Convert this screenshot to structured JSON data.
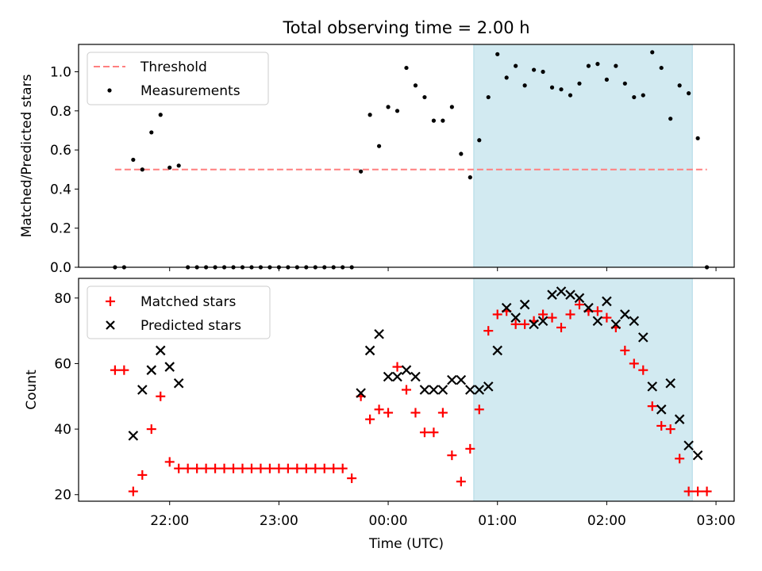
{
  "figure": {
    "title": "Total observing time = 2.00 h"
  },
  "colors": {
    "threshold": "#ff7f7f",
    "span": "#add8e6",
    "measurement": "#000000",
    "matched": "#ff0000",
    "predicted": "#000000"
  },
  "chart_data": [
    {
      "type": "scatter",
      "ylabel": "Matched/Predicted stars",
      "ylim": [
        0,
        1.14
      ],
      "yticks": [
        "0.0",
        "0.2",
        "0.4",
        "0.6",
        "0.8",
        "1.0"
      ],
      "xlim": [
        "21:10",
        "03:10"
      ],
      "legend": {
        "placement": "top-left",
        "entries": [
          "Threshold",
          "Measurements"
        ]
      },
      "highlight_span": [
        "00:47",
        "02:47"
      ],
      "threshold": {
        "name": "Threshold",
        "value": 0.5,
        "x": [
          "21:30",
          "02:55"
        ],
        "style": "dashed"
      },
      "series": [
        {
          "name": "Measurements",
          "x": [
            "21:30",
            "21:35",
            "21:40",
            "21:45",
            "21:50",
            "21:55",
            "22:00",
            "22:05",
            "22:10",
            "22:15",
            "22:20",
            "22:25",
            "22:30",
            "22:35",
            "22:40",
            "22:45",
            "22:50",
            "22:55",
            "23:00",
            "23:05",
            "23:10",
            "23:15",
            "23:20",
            "23:25",
            "23:30",
            "23:35",
            "23:40",
            "23:45",
            "23:50",
            "23:55",
            "00:00",
            "00:05",
            "00:10",
            "00:15",
            "00:20",
            "00:25",
            "00:30",
            "00:35",
            "00:40",
            "00:45",
            "00:50",
            "00:55",
            "01:00",
            "01:05",
            "01:10",
            "01:15",
            "01:20",
            "01:25",
            "01:30",
            "01:35",
            "01:40",
            "01:45",
            "01:50",
            "01:55",
            "02:00",
            "02:05",
            "02:10",
            "02:15",
            "02:20",
            "02:25",
            "02:30",
            "02:35",
            "02:40",
            "02:45",
            "02:50"
          ],
          "y": [
            0,
            0,
            0.55,
            0.5,
            0.69,
            0.78,
            0.51,
            0.52,
            0,
            0,
            0,
            0,
            0,
            0,
            0,
            0,
            0,
            0,
            0,
            0,
            0,
            0,
            0,
            0,
            0,
            0,
            0,
            0.49,
            0.78,
            0.62,
            0.82,
            0.8,
            1.02,
            0.93,
            0.87,
            0.75,
            0.75,
            0.82,
            0.58,
            0.46,
            0.65,
            0.87,
            1.09,
            0.97,
            1.03,
            0.93,
            1.01,
            1.0,
            0.92,
            0.91,
            0.88,
            0.94,
            1.03,
            1.04,
            0.96,
            1.03,
            0.94,
            0.87,
            0.88,
            1.1,
            1.02,
            0.76,
            0.93,
            0.89,
            0.66
          ]
        }
      ],
      "extra_points": {
        "x": [
          "02:55"
        ],
        "y": [
          0
        ]
      }
    },
    {
      "type": "scatter",
      "xlabel": "Time (UTC)",
      "ylabel": "Count",
      "ylim": [
        18,
        86
      ],
      "yticks": [
        "20",
        "40",
        "60",
        "80"
      ],
      "xticks": [
        "22:00",
        "23:00",
        "00:00",
        "01:00",
        "02:00",
        "03:00"
      ],
      "xlim": [
        "21:10",
        "03:10"
      ],
      "legend": {
        "placement": "top-left",
        "entries": [
          "Matched stars",
          "Predicted stars"
        ]
      },
      "highlight_span": [
        "00:47",
        "02:47"
      ],
      "series": [
        {
          "name": "Matched stars",
          "x": [
            "21:30",
            "21:35",
            "21:40",
            "21:45",
            "21:50",
            "21:55",
            "22:00",
            "22:05",
            "22:10",
            "22:15",
            "22:20",
            "22:25",
            "22:30",
            "22:35",
            "22:40",
            "22:45",
            "22:50",
            "22:55",
            "23:00",
            "23:05",
            "23:10",
            "23:15",
            "23:20",
            "23:25",
            "23:30",
            "23:35",
            "23:40",
            "23:45",
            "23:50",
            "23:55",
            "00:00",
            "00:05",
            "00:10",
            "00:15",
            "00:20",
            "00:25",
            "00:30",
            "00:35",
            "00:40",
            "00:45",
            "00:50",
            "00:55",
            "01:00",
            "01:05",
            "01:10",
            "01:15",
            "01:20",
            "01:25",
            "01:30",
            "01:35",
            "01:40",
            "01:45",
            "01:50",
            "01:55",
            "02:00",
            "02:05",
            "02:10",
            "02:15",
            "02:20",
            "02:25",
            "02:30",
            "02:35",
            "02:40",
            "02:45",
            "02:50",
            "02:55"
          ],
          "y": [
            58,
            58,
            21,
            26,
            40,
            50,
            30,
            28,
            28,
            28,
            28,
            28,
            28,
            28,
            28,
            28,
            28,
            28,
            28,
            28,
            28,
            28,
            28,
            28,
            28,
            28,
            25,
            50,
            43,
            46,
            45,
            59,
            52,
            45,
            39,
            39,
            45,
            32,
            24,
            34,
            46,
            70,
            75,
            76,
            72,
            72,
            73,
            75,
            74,
            71,
            75,
            78,
            76,
            76,
            74,
            71,
            64,
            60,
            58,
            47,
            41,
            40,
            31,
            21,
            21,
            21
          ]
        },
        {
          "name": "Predicted stars",
          "x": [
            "21:40",
            "21:45",
            "21:50",
            "21:55",
            "22:00",
            "22:05",
            "23:45",
            "23:50",
            "23:55",
            "00:00",
            "00:05",
            "00:10",
            "00:15",
            "00:20",
            "00:25",
            "00:30",
            "00:35",
            "00:40",
            "00:45",
            "00:50",
            "00:55",
            "01:00",
            "01:05",
            "01:10",
            "01:15",
            "01:20",
            "01:25",
            "01:30",
            "01:35",
            "01:40",
            "01:45",
            "01:50",
            "01:55",
            "02:00",
            "02:05",
            "02:10",
            "02:15",
            "02:20",
            "02:25",
            "02:30",
            "02:35",
            "02:40",
            "02:45",
            "02:50"
          ],
          "y": [
            38,
            52,
            58,
            64,
            59,
            54,
            51,
            64,
            69,
            56,
            56,
            58,
            56,
            52,
            52,
            52,
            55,
            55,
            52,
            52,
            53,
            64,
            77,
            74,
            78,
            72,
            73,
            81,
            82,
            81,
            80,
            77,
            73,
            79,
            72,
            75,
            73,
            68,
            53,
            46,
            54,
            43,
            35,
            32
          ]
        }
      ]
    }
  ]
}
